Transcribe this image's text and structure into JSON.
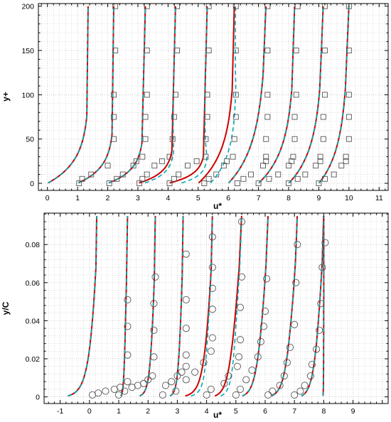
{
  "colors": {
    "red": "#cc0000",
    "cyan": "#00aab4",
    "marker": "#555555",
    "grid": "#bdbdbd",
    "frame": "#000000"
  },
  "chart_data": [
    {
      "type": "line",
      "xlabel": "u*",
      "ylabel": "y+",
      "xlim": [
        -0.3,
        11.3
      ],
      "ylim": [
        -8,
        203
      ],
      "xticks": [
        "0",
        "1",
        "2",
        "3",
        "4",
        "5",
        "6",
        "7",
        "8",
        "9",
        "10",
        "11"
      ],
      "yticks": [
        "0",
        "50",
        "100",
        "150",
        "200"
      ],
      "grid": true,
      "marker": "square",
      "curve_shape": "linear",
      "profiles": [
        {
          "offset": 0,
          "top": 1.35,
          "mid": 1.28,
          "scale": 25,
          "dash_shift": 0,
          "exp": []
        },
        {
          "offset": 1,
          "top": 2.2,
          "mid": 2.12,
          "scale": 18,
          "dash_shift": 0,
          "exp": [
            [
              1.05,
              0
            ],
            [
              1.15,
              5
            ],
            [
              1.45,
              10
            ],
            [
              2.0,
              20
            ],
            [
              2.2,
              50
            ],
            [
              2.2,
              75
            ],
            [
              2.2,
              100
            ],
            [
              2.25,
              150
            ],
            [
              2.25,
              200
            ]
          ]
        },
        {
          "offset": 2,
          "top": 3.25,
          "mid": 3.1,
          "scale": 15,
          "dash_shift": 0,
          "exp": [
            [
              2.05,
              0
            ],
            [
              2.3,
              5
            ],
            [
              2.5,
              10
            ],
            [
              2.85,
              20
            ],
            [
              2.95,
              25
            ],
            [
              3.15,
              30
            ],
            [
              3.25,
              50
            ],
            [
              3.25,
              75
            ],
            [
              3.3,
              100
            ],
            [
              3.3,
              150
            ],
            [
              3.3,
              200
            ]
          ]
        },
        {
          "offset": 3,
          "top": 4.25,
          "mid": 4.1,
          "scale": 12,
          "dash_shift": 0.2,
          "exp": [
            [
              3.05,
              0
            ],
            [
              3.15,
              5
            ],
            [
              3.3,
              10
            ],
            [
              3.55,
              20
            ],
            [
              3.8,
              25
            ],
            [
              4.05,
              30
            ],
            [
              4.15,
              50
            ],
            [
              4.2,
              75
            ],
            [
              4.25,
              100
            ],
            [
              4.3,
              150
            ],
            [
              4.3,
              200
            ]
          ]
        },
        {
          "offset": 4,
          "top": 5.3,
          "mid": 5.15,
          "scale": 10,
          "dash_shift": 0.4,
          "exp": [
            [
              4.05,
              0
            ],
            [
              4.2,
              5
            ],
            [
              4.35,
              10
            ],
            [
              4.65,
              20
            ],
            [
              4.95,
              25
            ],
            [
              5.25,
              30
            ],
            [
              5.25,
              50
            ],
            [
              5.3,
              75
            ],
            [
              5.3,
              100
            ],
            [
              5.35,
              150
            ],
            [
              5.35,
              200
            ]
          ]
        },
        {
          "offset": 5,
          "top": 6.2,
          "mid": 6.05,
          "scale": 35,
          "dash_shift": 0.4,
          "exp": [
            [
              5.2,
              0
            ],
            [
              5.35,
              5
            ],
            [
              5.6,
              10
            ],
            [
              5.85,
              20
            ],
            [
              5.95,
              25
            ],
            [
              6.15,
              30
            ],
            [
              6.2,
              50
            ],
            [
              6.25,
              75
            ],
            [
              6.25,
              100
            ],
            [
              6.25,
              150
            ],
            [
              6.25,
              200
            ]
          ]
        },
        {
          "offset": 6,
          "top": 7.25,
          "mid": 7.0,
          "scale": 40,
          "dash_shift": 0,
          "exp": [
            [
              6.3,
              0
            ],
            [
              6.5,
              5
            ],
            [
              6.75,
              10
            ],
            [
              7.15,
              20
            ],
            [
              7.25,
              25
            ],
            [
              7.25,
              30
            ],
            [
              7.25,
              50
            ],
            [
              7.3,
              75
            ],
            [
              7.3,
              100
            ],
            [
              7.3,
              150
            ],
            [
              7.3,
              200
            ]
          ]
        },
        {
          "offset": 7,
          "top": 8.2,
          "mid": 8.0,
          "scale": 35,
          "dash_shift": 0,
          "exp": [
            [
              7.0,
              0
            ],
            [
              7.35,
              5
            ],
            [
              7.65,
              10
            ],
            [
              8.0,
              20
            ],
            [
              8.1,
              25
            ],
            [
              8.15,
              30
            ],
            [
              8.2,
              50
            ],
            [
              8.2,
              75
            ],
            [
              8.25,
              100
            ],
            [
              8.25,
              150
            ],
            [
              8.3,
              200
            ]
          ]
        },
        {
          "offset": 8,
          "top": 9.15,
          "mid": 8.9,
          "scale": 35,
          "dash_shift": 0,
          "exp": [
            [
              8.0,
              0
            ],
            [
              8.3,
              5
            ],
            [
              8.55,
              10
            ],
            [
              8.9,
              20
            ],
            [
              9.05,
              25
            ],
            [
              9.05,
              30
            ],
            [
              9.15,
              50
            ],
            [
              9.15,
              75
            ],
            [
              9.2,
              100
            ],
            [
              9.2,
              150
            ],
            [
              9.2,
              200
            ]
          ]
        },
        {
          "offset": 9,
          "top": 10.0,
          "mid": 9.75,
          "scale": 35,
          "dash_shift": 0,
          "exp": [
            [
              9.0,
              0
            ],
            [
              9.2,
              5
            ],
            [
              9.5,
              10
            ],
            [
              9.75,
              20
            ],
            [
              9.9,
              25
            ],
            [
              9.9,
              30
            ],
            [
              10.0,
              50
            ],
            [
              10.0,
              75
            ],
            [
              10.0,
              100
            ],
            [
              10.0,
              150
            ],
            [
              10.0,
              200
            ]
          ]
        }
      ]
    },
    {
      "type": "line",
      "xlabel": "u*",
      "ylabel": "y/C",
      "xlim": [
        -1.55,
        10.2
      ],
      "ylim": [
        -0.0035,
        0.0965
      ],
      "xticks": [
        "-1",
        "0",
        "1",
        "2",
        "3",
        "4",
        "5",
        "6",
        "7",
        "8",
        "9"
      ],
      "yticks": [
        "0",
        "0.02",
        "0.04",
        "0.06",
        "0.08"
      ],
      "grid": true,
      "marker": "circle",
      "curve_shape": "log",
      "profiles": [
        {
          "offset": -1,
          "top": 0.25,
          "mid": 0.15,
          "scale": 0.012,
          "dash_shift": 0,
          "exp": [
            [
              0.1,
              0.001
            ],
            [
              0.3,
              0.002
            ],
            [
              0.55,
              0.003
            ],
            [
              0.85,
              0.004
            ],
            [
              1.05,
              0.005
            ]
          ]
        },
        {
          "offset": 1,
          "top": 1.3,
          "mid": 1.2,
          "scale": 0.003,
          "dash_shift": 0,
          "exp": [
            [
              1.0,
              0.001
            ],
            [
              1.2,
              0.003
            ],
            [
              1.3,
              0.008
            ],
            [
              1.3,
              0.022
            ],
            [
              1.3,
              0.037
            ],
            [
              1.3,
              0.051
            ]
          ]
        },
        {
          "offset": 1.5,
          "top": 2.25,
          "mid": 2.15,
          "scale": 0.004,
          "dash_shift": 0,
          "exp": [
            [
              1.45,
              0.005
            ],
            [
              1.65,
              0.006
            ],
            [
              1.85,
              0.007
            ],
            [
              2.0,
              0.009
            ],
            [
              2.15,
              0.011
            ],
            [
              2.2,
              0.021
            ],
            [
              2.2,
              0.035
            ],
            [
              2.2,
              0.049
            ],
            [
              2.25,
              0.063
            ]
          ]
        },
        {
          "offset": 2.6,
          "top": 3.2,
          "mid": 3.1,
          "scale": 0.005,
          "dash_shift": 0,
          "exp": [
            [
              2.5,
              0.001
            ],
            [
              2.6,
              0.006
            ],
            [
              2.8,
              0.008
            ],
            [
              3.0,
              0.011
            ],
            [
              3.15,
              0.013
            ],
            [
              3.3,
              0.016
            ],
            [
              3.3,
              0.022
            ],
            [
              3.3,
              0.036
            ],
            [
              3.3,
              0.051
            ],
            [
              3.3,
              0.075
            ]
          ]
        },
        {
          "offset": 3.0,
          "top": 4.2,
          "mid": 4.05,
          "scale": 0.008,
          "dash_shift": 0.2,
          "exp": [
            [
              2.95,
              0.003
            ],
            [
              3.3,
              0.009
            ],
            [
              3.6,
              0.013
            ],
            [
              3.9,
              0.018
            ],
            [
              4.15,
              0.024
            ],
            [
              4.2,
              0.031
            ],
            [
              4.2,
              0.046
            ],
            [
              4.2,
              0.057
            ],
            [
              4.2,
              0.068
            ],
            [
              4.2,
              0.084
            ]
          ]
        },
        {
          "offset": 4.1,
          "top": 5.2,
          "mid": 4.9,
          "scale": 0.012,
          "dash_shift": 0.2,
          "exp": [
            [
              4.0,
              0.001
            ],
            [
              4.15,
              0.004
            ],
            [
              4.6,
              0.007
            ],
            [
              4.75,
              0.011
            ],
            [
              5.05,
              0.016
            ],
            [
              5.1,
              0.021
            ],
            [
              5.15,
              0.03
            ],
            [
              5.15,
              0.047
            ],
            [
              5.2,
              0.063
            ],
            [
              5.2,
              0.092
            ]
          ]
        },
        {
          "offset": 5.05,
          "top": 6.1,
          "mid": 5.85,
          "scale": 0.014,
          "dash_shift": 0,
          "exp": [
            [
              5.0,
              0.001
            ],
            [
              5.15,
              0.004
            ],
            [
              5.35,
              0.009
            ],
            [
              5.55,
              0.014
            ],
            [
              5.75,
              0.021
            ],
            [
              5.85,
              0.029
            ],
            [
              5.95,
              0.037
            ],
            [
              6.0,
              0.045
            ],
            [
              6.05,
              0.062
            ]
          ]
        },
        {
          "offset": 6.05,
          "top": 7.1,
          "mid": 6.85,
          "scale": 0.016,
          "dash_shift": 0,
          "exp": [
            [
              6.1,
              0.001
            ],
            [
              6.25,
              0.003
            ],
            [
              6.5,
              0.006
            ],
            [
              6.65,
              0.011
            ],
            [
              6.75,
              0.018
            ],
            [
              6.85,
              0.026
            ],
            [
              7.0,
              0.038
            ],
            [
              7.05,
              0.06
            ],
            [
              7.1,
              0.08
            ]
          ]
        },
        {
          "offset": 7.1,
          "top": 8.0,
          "mid": 7.8,
          "scale": 0.018,
          "dash_shift": 0,
          "exp": [
            [
              7.0,
              0.001
            ],
            [
              7.2,
              0.003
            ],
            [
              7.35,
              0.006
            ],
            [
              7.55,
              0.011
            ],
            [
              7.6,
              0.017
            ],
            [
              7.75,
              0.025
            ],
            [
              7.85,
              0.035
            ],
            [
              7.9,
              0.049
            ],
            [
              7.95,
              0.068
            ],
            [
              8.05,
              0.081
            ]
          ]
        },
        {
          "offset": 7.95,
          "top": 8.0,
          "mid": 8.0,
          "scale": 0.001,
          "dash_shift": 0,
          "exp": []
        }
      ]
    }
  ]
}
